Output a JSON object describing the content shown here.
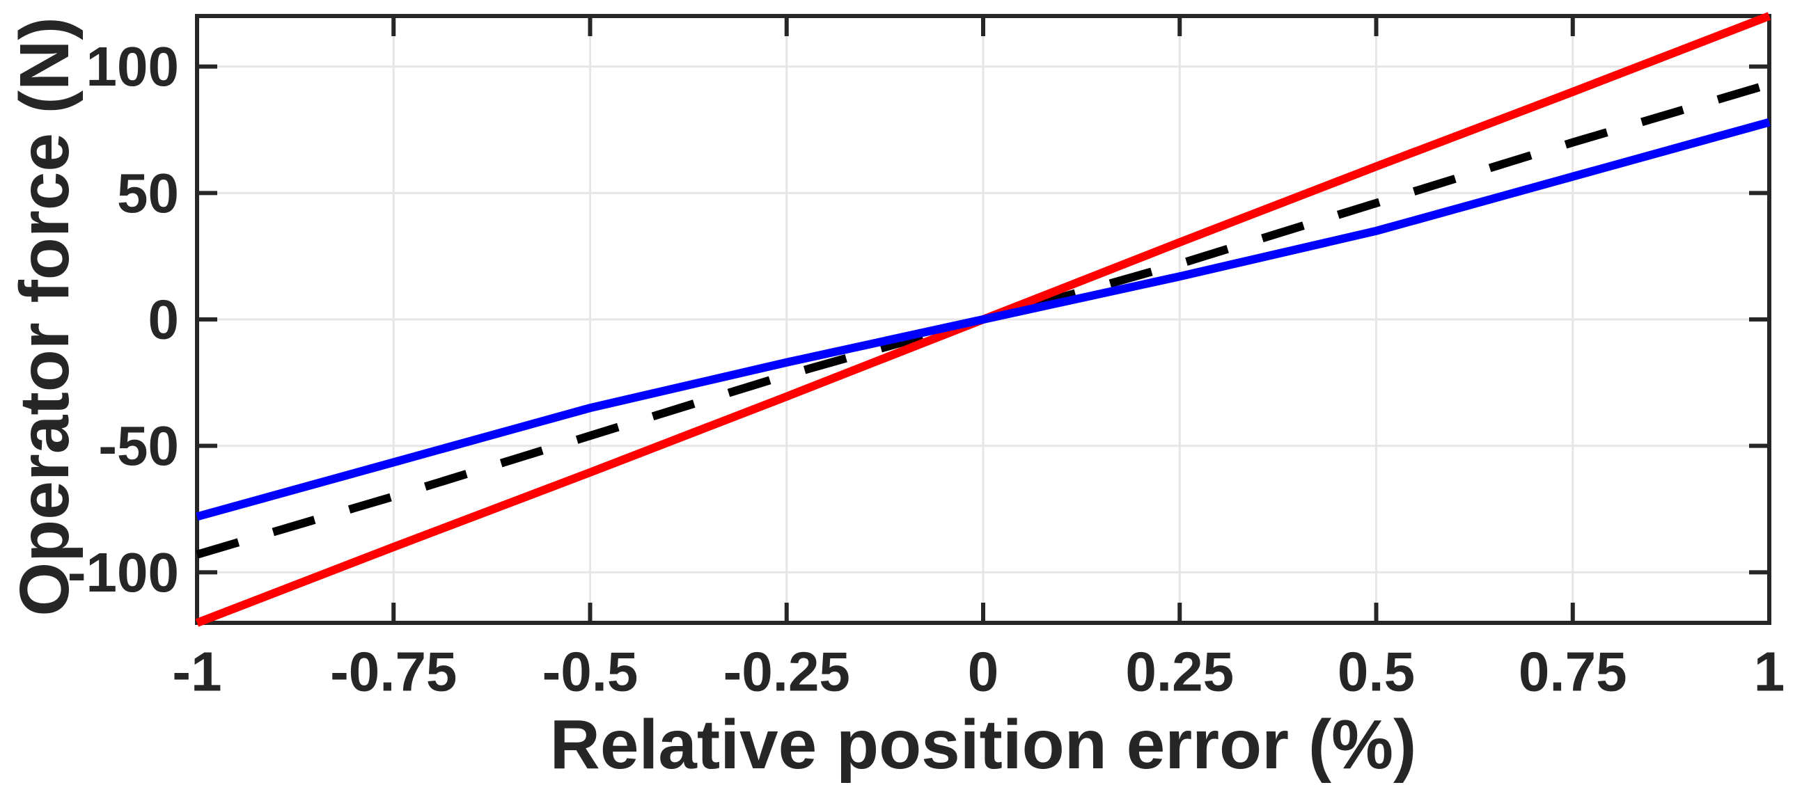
{
  "figure": {
    "background": "#ffffff"
  },
  "chart_data": {
    "type": "line",
    "title": "",
    "xlabel": "Relative position error (%)",
    "ylabel": "Operator force (N)",
    "xlim": [
      -1,
      1
    ],
    "ylim": [
      -120,
      120
    ],
    "xticks": [
      -1,
      -0.75,
      -0.5,
      -0.25,
      0,
      0.25,
      0.5,
      0.75,
      1
    ],
    "xtick_labels": [
      "-1",
      "-0.75",
      "-0.5",
      "-0.25",
      "0",
      "0.25",
      "0.5",
      "0.75",
      "1"
    ],
    "yticks": [
      -100,
      -50,
      0,
      50,
      100
    ],
    "ytick_labels": [
      "-100",
      "-50",
      "0",
      "50",
      "100"
    ],
    "grid": true,
    "box": true,
    "ticks_all_sides": true,
    "legend": "none",
    "axis_color": "#262626",
    "grid_color": "#e6e6e6",
    "background": "#ffffff",
    "x": [
      -1,
      -0.75,
      -0.5,
      -0.25,
      0,
      0.25,
      0.5,
      0.75,
      1
    ],
    "series": [
      {
        "name": "black-dashed-line",
        "color": "#000000",
        "line_style": "dashed",
        "y": [
          -93,
          -70,
          -46,
          -22,
          0,
          22,
          46,
          70,
          93
        ]
      },
      {
        "name": "red-solid-line",
        "color": "#ff0000",
        "line_style": "solid",
        "y": [
          -120,
          -90,
          -60.5,
          -30.5,
          0,
          30.5,
          60.5,
          90,
          120
        ]
      },
      {
        "name": "blue-solid-line",
        "color": "#0000ff",
        "line_style": "solid",
        "y": [
          -78,
          -56.5,
          -35,
          -17,
          0,
          17,
          35,
          56.5,
          78
        ]
      }
    ]
  }
}
